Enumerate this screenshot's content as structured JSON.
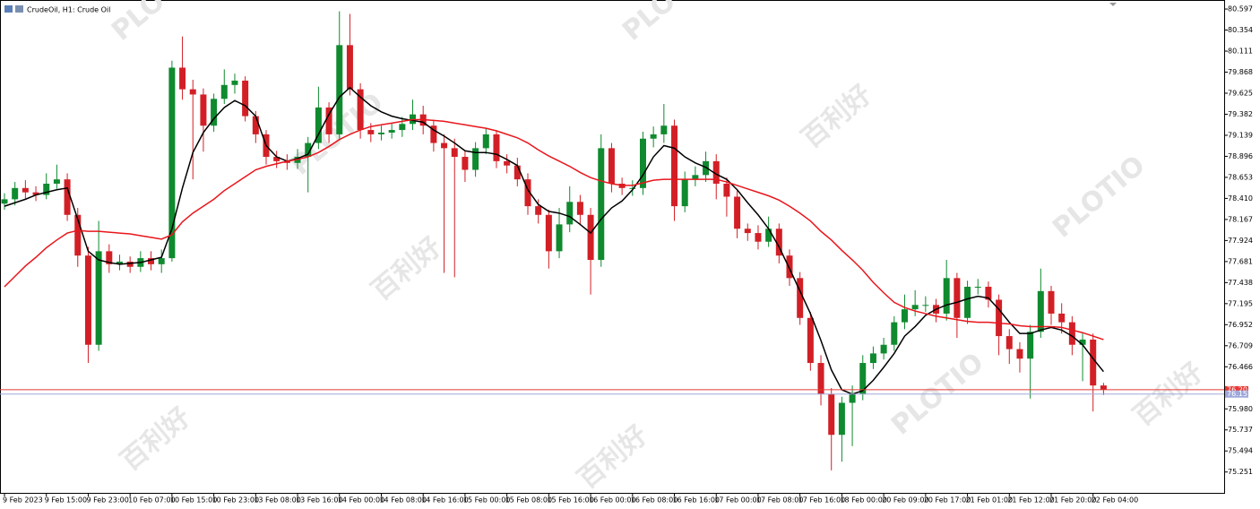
{
  "chart_data": {
    "type": "candlestick",
    "title": "CrudeOil, H1:  Crude Oil",
    "watermark": {
      "brand": "PLOTIO",
      "text": "百利好"
    },
    "up_color": "#0f8a2f",
    "down_color": "#d21f26",
    "ylim": [
      75.01,
      80.67
    ],
    "yticks": [
      80.597,
      80.354,
      80.111,
      79.868,
      79.625,
      79.382,
      79.139,
      78.896,
      78.653,
      {
        "value": 78.41,
        "label": "78.410"
      },
      78.167,
      77.924,
      77.681,
      77.438,
      77.195,
      76.952,
      76.709,
      76.466,
      {
        "value": 75.98,
        "label": "75.980"
      },
      75.737,
      75.494,
      75.251
    ],
    "price_lines": [
      {
        "value": 76.201,
        "color": "#e53935"
      },
      {
        "value": 76.151,
        "color": "#9fa8da"
      }
    ],
    "categories": [
      "9 Feb 2023",
      null,
      null,
      null,
      "9 Feb 15:00",
      null,
      null,
      null,
      "9 Feb 23:00",
      null,
      null,
      null,
      "10 Feb 07:00",
      null,
      null,
      null,
      "10 Feb 15:00",
      null,
      null,
      null,
      "10 Feb 23:00",
      null,
      null,
      null,
      "13 Feb 08:00",
      null,
      null,
      null,
      "13 Feb 16:00",
      null,
      null,
      null,
      "14 Feb 00:00",
      null,
      null,
      null,
      "14 Feb 08:00",
      null,
      null,
      null,
      "14 Feb 16:00",
      null,
      null,
      null,
      "15 Feb 00:00",
      null,
      null,
      null,
      "15 Feb 08:00",
      null,
      null,
      null,
      "15 Feb 16:00",
      null,
      null,
      null,
      "16 Feb 00:00",
      null,
      null,
      null,
      "16 Feb 08:00",
      null,
      null,
      null,
      "16 Feb 16:00",
      null,
      null,
      null,
      "17 Feb 00:00",
      null,
      null,
      null,
      "17 Feb 08:00",
      null,
      null,
      null,
      "17 Feb 16:00",
      null,
      null,
      null,
      "18 Feb 00:00",
      null,
      null,
      null,
      "20 Feb 09:00",
      null,
      null,
      null,
      "20 Feb 17:00",
      null,
      null,
      null,
      "21 Feb 01:00",
      null,
      null,
      null,
      "21 Feb 12:00",
      null,
      null,
      null,
      "21 Feb 20:00",
      null,
      null,
      null,
      "22 Feb 04:00",
      null
    ],
    "open": [
      78.35,
      78.4,
      78.53,
      78.48,
      78.45,
      78.58,
      78.63,
      78.22,
      77.75,
      76.72,
      77.8,
      77.65,
      77.68,
      77.62,
      77.72,
      77.65,
      77.72,
      79.92,
      79.67,
      79.61,
      79.25,
      79.56,
      79.72,
      79.77,
      79.36,
      79.15,
      78.89,
      78.84,
      78.82,
      78.89,
      79.05,
      79.46,
      79.15,
      80.18,
      79.67,
      79.2,
      79.15,
      79.17,
      79.2,
      79.27,
      79.38,
      79.25,
      79.05,
      78.99,
      78.89,
      78.74,
      78.99,
      79.15,
      78.84,
      78.79,
      78.63,
      78.32,
      78.22,
      77.8,
      78.11,
      78.37,
      78.22,
      77.7,
      78.99,
      78.58,
      78.53,
      78.53,
      79.1,
      79.15,
      79.25,
      78.32,
      78.63,
      78.68,
      78.84,
      78.58,
      78.43,
      78.06,
      78.01,
      77.91,
      78.06,
      77.75,
      77.49,
      77.03,
      76.51,
      76.15,
      75.68,
      76.05,
      76.15,
      76.51,
      76.62,
      76.72,
      76.98,
      77.13,
      77.18,
      77.18,
      77.08,
      77.49,
      77.03,
      77.39,
      77.39,
      77.24,
      76.82,
      76.67,
      76.56,
      76.87,
      77.34,
      77.08,
      76.98,
      76.72,
      76.78,
      76.25
    ],
    "high": [
      78.47,
      78.6,
      78.62,
      78.55,
      78.7,
      78.8,
      78.7,
      78.3,
      77.85,
      78.15,
      77.88,
      77.76,
      77.74,
      77.8,
      77.8,
      77.82,
      80.0,
      80.28,
      79.78,
      79.68,
      79.62,
      79.9,
      79.85,
      79.82,
      79.42,
      79.2,
      78.96,
      78.92,
      78.98,
      79.12,
      79.7,
      79.52,
      80.57,
      80.54,
      79.74,
      79.28,
      79.25,
      79.28,
      79.35,
      79.55,
      79.48,
      79.32,
      79.15,
      79.1,
      78.96,
      79.06,
      79.22,
      79.2,
      78.92,
      78.88,
      78.7,
      78.4,
      78.28,
      78.3,
      78.55,
      78.45,
      78.3,
      79.15,
      79.05,
      78.65,
      78.62,
      79.18,
      79.24,
      79.5,
      79.32,
      78.72,
      78.78,
      78.95,
      78.92,
      78.65,
      78.5,
      78.12,
      78.1,
      78.2,
      78.12,
      77.82,
      77.56,
      77.1,
      76.6,
      76.22,
      76.12,
      76.25,
      76.6,
      76.7,
      76.8,
      77.05,
      77.3,
      77.35,
      77.28,
      77.25,
      77.7,
      77.55,
      77.46,
      77.48,
      77.45,
      77.3,
      76.9,
      76.75,
      76.95,
      77.6,
      77.4,
      77.2,
      77.05,
      76.85,
      76.85,
      76.28
    ],
    "low": [
      78.28,
      78.33,
      78.41,
      78.38,
      78.4,
      78.52,
      78.15,
      77.62,
      76.51,
      76.65,
      77.55,
      77.58,
      77.55,
      77.56,
      77.58,
      77.55,
      77.68,
      79.55,
      78.63,
      78.95,
      79.18,
      79.5,
      79.62,
      79.3,
      79.05,
      78.8,
      78.76,
      78.74,
      78.75,
      78.48,
      78.98,
      79.05,
      79.1,
      79.6,
      79.1,
      79.06,
      79.08,
      79.1,
      79.12,
      79.2,
      79.15,
      78.95,
      77.55,
      77.5,
      78.6,
      78.66,
      78.92,
      78.76,
      78.7,
      78.55,
      78.22,
      78.12,
      77.6,
      77.72,
      78.02,
      78.1,
      77.3,
      77.62,
      78.48,
      78.45,
      78.44,
      78.45,
      79.0,
      79.05,
      78.15,
      78.25,
      78.55,
      78.6,
      78.4,
      78.2,
      77.95,
      77.92,
      77.82,
      77.85,
      77.66,
      77.4,
      76.95,
      76.42,
      76.02,
      75.27,
      75.37,
      75.55,
      76.08,
      76.44,
      76.55,
      76.65,
      76.9,
      77.05,
      77.1,
      76.98,
      77.0,
      76.8,
      76.96,
      77.3,
      77.15,
      76.6,
      76.5,
      76.4,
      76.1,
      76.8,
      76.95,
      76.85,
      76.6,
      76.3,
      75.95,
      76.14
    ],
    "close": [
      78.4,
      78.53,
      78.48,
      78.45,
      78.58,
      78.63,
      78.22,
      77.75,
      76.72,
      77.8,
      77.65,
      77.68,
      77.62,
      77.72,
      77.65,
      77.72,
      79.92,
      79.67,
      79.61,
      79.25,
      79.56,
      79.72,
      79.77,
      79.36,
      79.15,
      78.89,
      78.84,
      78.82,
      78.89,
      79.05,
      79.46,
      79.15,
      80.18,
      79.67,
      79.2,
      79.15,
      79.17,
      79.2,
      79.27,
      79.38,
      79.25,
      79.05,
      78.99,
      78.89,
      78.74,
      78.99,
      79.15,
      78.84,
      78.79,
      78.63,
      78.32,
      78.22,
      77.8,
      78.11,
      78.37,
      78.22,
      77.7,
      78.99,
      78.58,
      78.53,
      78.53,
      79.1,
      79.15,
      79.25,
      78.32,
      78.63,
      78.68,
      78.84,
      78.58,
      78.43,
      78.06,
      78.01,
      77.91,
      78.06,
      77.75,
      77.49,
      77.03,
      76.51,
      76.15,
      75.68,
      76.05,
      76.15,
      76.51,
      76.62,
      76.72,
      76.98,
      77.13,
      77.18,
      77.18,
      77.08,
      77.49,
      77.03,
      77.39,
      77.39,
      77.24,
      76.82,
      76.67,
      76.56,
      76.87,
      77.34,
      77.08,
      76.98,
      76.72,
      76.78,
      76.25,
      76.2
    ],
    "lines": [
      {
        "color": "#000000",
        "values": [
          78.32,
          78.36,
          78.4,
          78.45,
          78.48,
          78.51,
          78.53,
          78.17,
          77.8,
          77.7,
          77.67,
          77.65,
          77.66,
          77.67,
          77.7,
          77.73,
          78.06,
          78.53,
          78.94,
          79.17,
          79.33,
          79.46,
          79.54,
          79.48,
          79.36,
          79.02,
          78.89,
          78.84,
          78.87,
          78.92,
          79.15,
          79.38,
          79.58,
          79.69,
          79.58,
          79.48,
          79.41,
          79.36,
          79.33,
          79.31,
          79.29,
          79.2,
          79.13,
          79.05,
          78.96,
          78.94,
          78.94,
          78.92,
          78.86,
          78.79,
          78.51,
          78.34,
          78.26,
          78.24,
          78.2,
          78.11,
          78.01,
          78.17,
          78.3,
          78.38,
          78.51,
          78.68,
          78.89,
          79.02,
          78.99,
          78.89,
          78.82,
          78.77,
          78.69,
          78.63,
          78.51,
          78.36,
          78.22,
          78.06,
          77.85,
          77.6,
          77.34,
          77.08,
          76.77,
          76.43,
          76.2,
          76.15,
          76.19,
          76.31,
          76.46,
          76.62,
          76.82,
          76.93,
          77.06,
          77.13,
          77.18,
          77.21,
          77.25,
          77.28,
          77.26,
          77.13,
          76.98,
          76.85,
          76.85,
          76.89,
          76.92,
          76.89,
          76.82,
          76.72,
          76.56,
          76.41
        ]
      },
      {
        "color": "#e8161c",
        "values": [
          77.39,
          77.51,
          77.63,
          77.73,
          77.84,
          77.93,
          78.01,
          78.04,
          78.03,
          78.03,
          78.02,
          78.01,
          78.0,
          77.98,
          77.96,
          77.94,
          77.99,
          78.14,
          78.24,
          78.32,
          78.4,
          78.5,
          78.58,
          78.66,
          78.74,
          78.78,
          78.81,
          78.84,
          78.86,
          78.89,
          78.94,
          79.01,
          79.09,
          79.15,
          79.2,
          79.24,
          79.26,
          79.28,
          79.3,
          79.32,
          79.32,
          79.31,
          79.3,
          79.28,
          79.26,
          79.24,
          79.22,
          79.19,
          79.15,
          79.11,
          79.05,
          78.97,
          78.9,
          78.84,
          78.78,
          78.71,
          78.65,
          78.61,
          78.58,
          78.56,
          78.56,
          78.59,
          78.62,
          78.63,
          78.63,
          78.63,
          78.63,
          78.63,
          78.63,
          78.6,
          78.56,
          78.52,
          78.48,
          78.44,
          78.39,
          78.32,
          78.24,
          78.15,
          78.03,
          77.93,
          77.81,
          77.7,
          77.58,
          77.44,
          77.32,
          77.21,
          77.15,
          77.11,
          77.08,
          77.05,
          77.03,
          77.01,
          76.99,
          76.98,
          76.98,
          76.97,
          76.96,
          76.94,
          76.93,
          76.93,
          76.93,
          76.92,
          76.89,
          76.86,
          76.82,
          76.78
        ]
      }
    ]
  }
}
